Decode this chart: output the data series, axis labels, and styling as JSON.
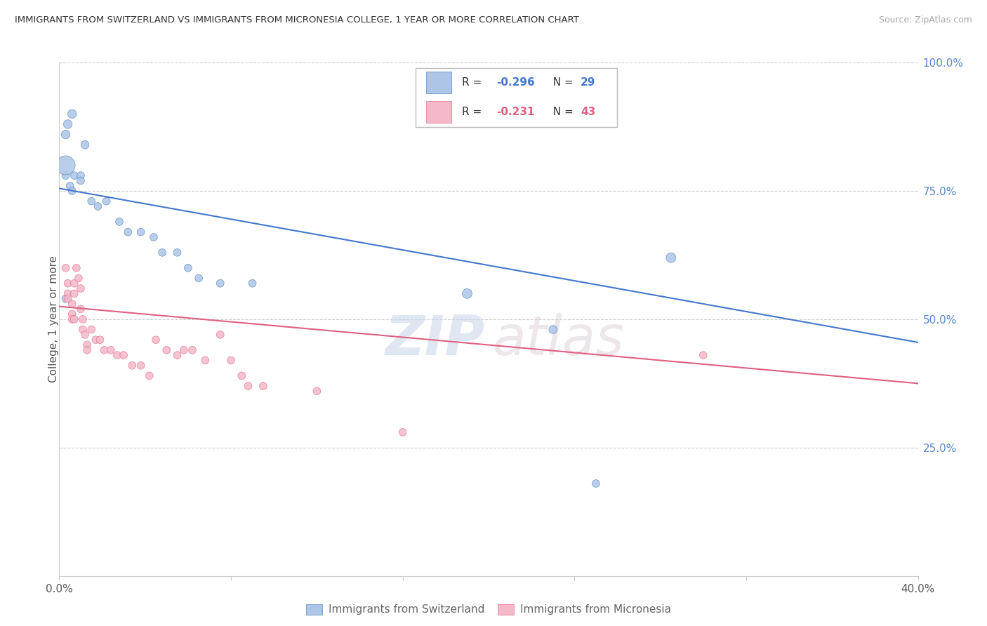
{
  "title": "IMMIGRANTS FROM SWITZERLAND VS IMMIGRANTS FROM MICRONESIA COLLEGE, 1 YEAR OR MORE CORRELATION CHART",
  "source": "Source: ZipAtlas.com",
  "ylabel": "College, 1 year or more",
  "x_min": 0.0,
  "x_max": 0.4,
  "y_min": 0.0,
  "y_max": 1.0,
  "right_yticks": [
    0.0,
    0.25,
    0.5,
    0.75,
    1.0
  ],
  "right_yticklabels": [
    "",
    "25.0%",
    "50.0%",
    "75.0%",
    "100.0%"
  ],
  "bottom_xticks": [
    0.0,
    0.08,
    0.16,
    0.24,
    0.32,
    0.4
  ],
  "bottom_xticklabels": [
    "0.0%",
    "",
    "",
    "",
    "",
    "40.0%"
  ],
  "legend_R_blue": "-0.296",
  "legend_N_blue": "29",
  "legend_R_pink": "-0.231",
  "legend_N_pink": "43",
  "blue_fill": "#adc6e8",
  "pink_fill": "#f4b8c8",
  "blue_edge": "#5588bb",
  "pink_edge": "#e07090",
  "blue_line": "#4477cc",
  "pink_line": "#e06080",
  "blue_scatter": [
    [
      0.003,
      0.78
    ],
    [
      0.005,
      0.76
    ],
    [
      0.006,
      0.75
    ],
    [
      0.007,
      0.78
    ],
    [
      0.01,
      0.78
    ],
    [
      0.01,
      0.77
    ],
    [
      0.003,
      0.86
    ],
    [
      0.004,
      0.88
    ],
    [
      0.006,
      0.9
    ],
    [
      0.012,
      0.84
    ],
    [
      0.015,
      0.73
    ],
    [
      0.018,
      0.72
    ],
    [
      0.022,
      0.73
    ],
    [
      0.003,
      0.8
    ],
    [
      0.028,
      0.69
    ],
    [
      0.032,
      0.67
    ],
    [
      0.038,
      0.67
    ],
    [
      0.044,
      0.66
    ],
    [
      0.048,
      0.63
    ],
    [
      0.055,
      0.63
    ],
    [
      0.06,
      0.6
    ],
    [
      0.065,
      0.58
    ],
    [
      0.075,
      0.57
    ],
    [
      0.09,
      0.57
    ],
    [
      0.003,
      0.54
    ],
    [
      0.19,
      0.55
    ],
    [
      0.23,
      0.48
    ],
    [
      0.285,
      0.62
    ],
    [
      0.25,
      0.18
    ]
  ],
  "blue_scatter_sizes": [
    60,
    60,
    60,
    60,
    60,
    60,
    80,
    80,
    80,
    70,
    60,
    60,
    60,
    380,
    60,
    60,
    60,
    60,
    60,
    60,
    60,
    60,
    60,
    60,
    60,
    100,
    70,
    100,
    60
  ],
  "pink_scatter": [
    [
      0.003,
      0.6
    ],
    [
      0.004,
      0.57
    ],
    [
      0.004,
      0.55
    ],
    [
      0.004,
      0.54
    ],
    [
      0.006,
      0.53
    ],
    [
      0.006,
      0.51
    ],
    [
      0.006,
      0.5
    ],
    [
      0.007,
      0.5
    ],
    [
      0.007,
      0.55
    ],
    [
      0.007,
      0.57
    ],
    [
      0.008,
      0.6
    ],
    [
      0.009,
      0.58
    ],
    [
      0.01,
      0.56
    ],
    [
      0.01,
      0.52
    ],
    [
      0.011,
      0.5
    ],
    [
      0.011,
      0.48
    ],
    [
      0.012,
      0.47
    ],
    [
      0.013,
      0.45
    ],
    [
      0.013,
      0.44
    ],
    [
      0.015,
      0.48
    ],
    [
      0.017,
      0.46
    ],
    [
      0.019,
      0.46
    ],
    [
      0.021,
      0.44
    ],
    [
      0.024,
      0.44
    ],
    [
      0.027,
      0.43
    ],
    [
      0.03,
      0.43
    ],
    [
      0.034,
      0.41
    ],
    [
      0.038,
      0.41
    ],
    [
      0.042,
      0.39
    ],
    [
      0.045,
      0.46
    ],
    [
      0.05,
      0.44
    ],
    [
      0.055,
      0.43
    ],
    [
      0.058,
      0.44
    ],
    [
      0.062,
      0.44
    ],
    [
      0.068,
      0.42
    ],
    [
      0.075,
      0.47
    ],
    [
      0.08,
      0.42
    ],
    [
      0.085,
      0.39
    ],
    [
      0.088,
      0.37
    ],
    [
      0.095,
      0.37
    ],
    [
      0.12,
      0.36
    ],
    [
      0.16,
      0.28
    ],
    [
      0.3,
      0.43
    ]
  ],
  "pink_scatter_sizes": [
    60,
    60,
    60,
    60,
    60,
    60,
    60,
    60,
    60,
    60,
    60,
    60,
    60,
    60,
    60,
    60,
    60,
    60,
    60,
    60,
    60,
    60,
    60,
    60,
    60,
    60,
    60,
    60,
    60,
    60,
    60,
    60,
    60,
    60,
    60,
    60,
    60,
    60,
    60,
    60,
    60,
    60,
    60
  ],
  "blue_trend_x": [
    0.0,
    0.4
  ],
  "blue_trend_y": [
    0.755,
    0.455
  ],
  "pink_trend_x": [
    0.0,
    0.4
  ],
  "pink_trend_y": [
    0.525,
    0.375
  ],
  "watermark_zip": "ZIP",
  "watermark_atlas": "atlas",
  "legend_label_blue": "Immigrants from Switzerland",
  "legend_label_pink": "Immigrants from Micronesia",
  "grid_color": "#cccccc",
  "bg_color": "#ffffff",
  "axis_color": "#cccccc",
  "label_color": "#555555",
  "right_tick_color": "#5588cc",
  "source_color": "#aaaaaa"
}
